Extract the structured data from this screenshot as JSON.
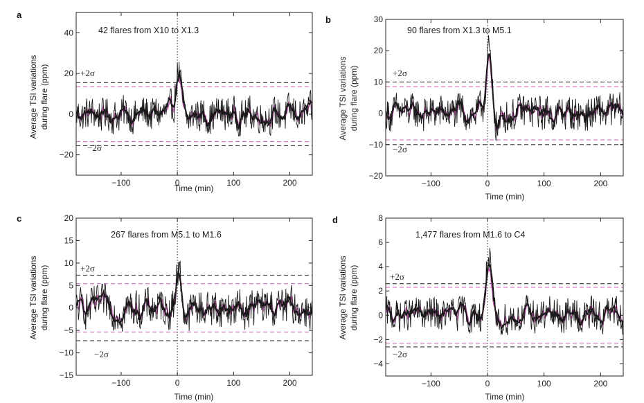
{
  "chart_data": [
    {
      "panel": "a",
      "type": "line",
      "annotation": "42 flares from X10 to X1.3",
      "xlabel": "Time (min)",
      "ylabel": [
        "Average TSI variations",
        "during flare (ppm)"
      ],
      "xlim": [
        -180,
        240
      ],
      "ylim": [
        -30,
        50
      ],
      "xticks": [
        -100,
        0,
        100,
        200
      ],
      "yticks": [
        -20,
        0,
        20,
        40
      ],
      "ytick_labels": [
        "−20",
        "0",
        "20",
        "40"
      ],
      "xtick_labels": [
        "−100",
        "0",
        "100",
        "200"
      ],
      "sigma_black": [
        15.5,
        -15.5
      ],
      "sigma_pink": [
        13.5,
        -13.5
      ],
      "sigma_labels": [
        "+2σ",
        "−2σ"
      ],
      "noise_amp": 6,
      "peak": 22,
      "colors": {
        "black": "#1a1a1a",
        "pink": "#c45ab3",
        "sigma_pink": "#d46cc0"
      }
    },
    {
      "panel": "b",
      "type": "line",
      "annotation": "90 flares from X1.3 to M5.1",
      "xlabel": "Time (min)",
      "ylabel": [
        "Average TSI variations",
        "during flare (ppm)"
      ],
      "xlim": [
        -180,
        240
      ],
      "ylim": [
        -20,
        30
      ],
      "xticks": [
        -100,
        0,
        100,
        200
      ],
      "yticks": [
        -20,
        -10,
        0,
        10,
        20,
        30
      ],
      "ytick_labels": [
        "−20",
        "−10",
        "0",
        "10",
        "20",
        "30"
      ],
      "xtick_labels": [
        "−100",
        "0",
        "100",
        "200"
      ],
      "sigma_black": [
        10,
        -10
      ],
      "sigma_pink": [
        8.5,
        -8.5
      ],
      "sigma_labels": [
        "+2σ",
        "−2σ"
      ],
      "noise_amp": 4,
      "peak": 20,
      "colors": {
        "black": "#1a1a1a",
        "pink": "#c45ab3",
        "sigma_pink": "#d46cc0"
      }
    },
    {
      "panel": "c",
      "type": "line",
      "annotation": "267 flares from M5.1 to M1.6",
      "xlabel": "Time (min)",
      "ylabel": [
        "Average TSI variations",
        "during flare (ppm)"
      ],
      "xlim": [
        -180,
        240
      ],
      "ylim": [
        -15,
        20
      ],
      "xticks": [
        -100,
        0,
        100,
        200
      ],
      "yticks": [
        -15,
        -10,
        -5,
        0,
        5,
        10,
        15,
        20
      ],
      "ytick_labels": [
        "−15",
        "−10",
        "−5",
        "0",
        "5",
        "10",
        "15",
        "20"
      ],
      "xtick_labels": [
        "−100",
        "0",
        "100",
        "200"
      ],
      "sigma_black": [
        7.3,
        -7.3
      ],
      "sigma_pink": [
        5.4,
        -5.4
      ],
      "sigma_labels": [
        "+2σ",
        "−2σ"
      ],
      "noise_amp": 3,
      "peak": 9,
      "colors": {
        "black": "#1a1a1a",
        "pink": "#c45ab3",
        "sigma_pink": "#d46cc0"
      }
    },
    {
      "panel": "d",
      "type": "line",
      "annotation": "1,477 flares from M1.6 to C4",
      "xlabel": "Time (min)",
      "ylabel": [
        "Average TSI variations",
        "during flare (ppm)"
      ],
      "xlim": [
        -180,
        240
      ],
      "ylim": [
        -5,
        8
      ],
      "xticks": [
        -100,
        0,
        100,
        200
      ],
      "yticks": [
        -4,
        -2,
        0,
        2,
        4,
        6,
        8
      ],
      "ytick_labels": [
        "−4",
        "−2",
        "0",
        "2",
        "4",
        "6",
        "8"
      ],
      "xtick_labels": [
        "−100",
        "0",
        "100",
        "200"
      ],
      "sigma_black": [
        2.6,
        -2.6
      ],
      "sigma_pink": [
        2.3,
        -2.3
      ],
      "sigma_labels": [
        "+2σ",
        "−2σ"
      ],
      "noise_amp": 1,
      "peak": 5,
      "colors": {
        "black": "#1a1a1a",
        "pink": "#c45ab3",
        "sigma_pink": "#d46cc0"
      }
    }
  ]
}
